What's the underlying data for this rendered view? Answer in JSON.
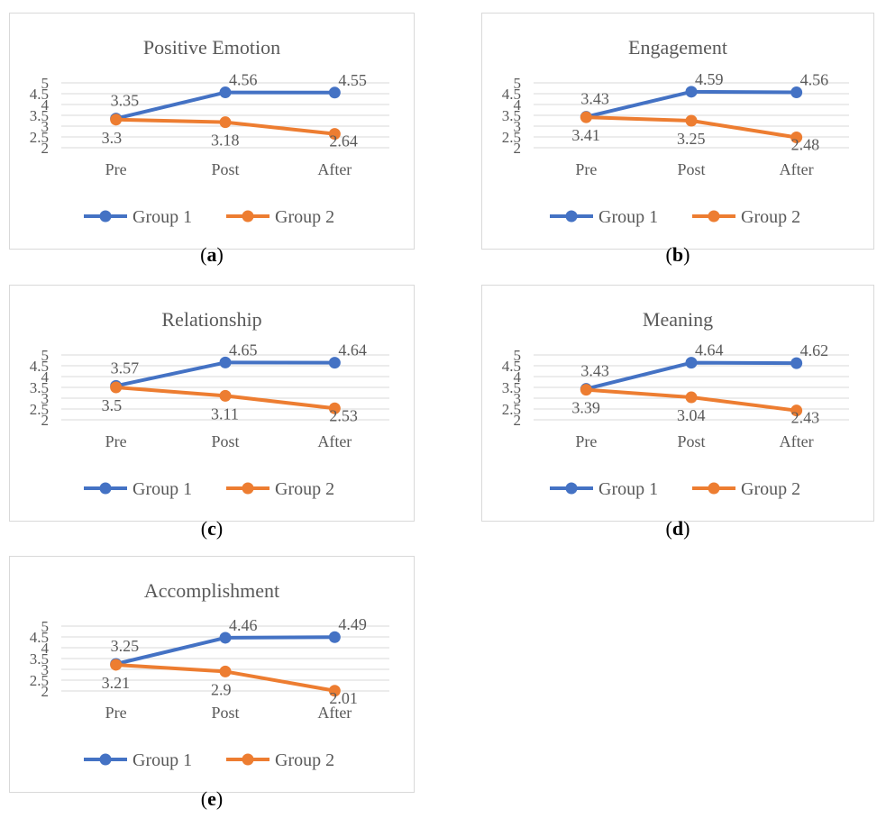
{
  "colors": {
    "group1": "#4472C4",
    "group2": "#ED7D31",
    "grid": "#d9d9d9",
    "text": "#595959"
  },
  "chart_data": [
    {
      "type": "line",
      "title": "Positive Emotion",
      "caption": "a",
      "categories": [
        "Pre",
        "Post",
        "After"
      ],
      "y_ticks": [
        "2",
        "2.5",
        "3",
        "3.5",
        "4",
        "4.5",
        "5"
      ],
      "ylim": [
        2,
        5
      ],
      "grid": true,
      "legend": "bottom",
      "series": [
        {
          "name": "Group 1",
          "values": [
            3.35,
            4.56,
            4.55
          ],
          "labels": [
            "3.35",
            "4.56",
            "4.55"
          ]
        },
        {
          "name": "Group 2",
          "values": [
            3.3,
            3.18,
            2.64
          ],
          "labels": [
            "3.3",
            "3.18",
            "2.64"
          ]
        }
      ]
    },
    {
      "type": "line",
      "title": "Engagement",
      "caption": "b",
      "categories": [
        "Pre",
        "Post",
        "After"
      ],
      "y_ticks": [
        "2",
        "2.5",
        "3",
        "3.5",
        "4",
        "4.5",
        "5"
      ],
      "ylim": [
        2,
        5
      ],
      "grid": true,
      "legend": "bottom",
      "series": [
        {
          "name": "Group 1",
          "values": [
            3.43,
            4.59,
            4.56
          ],
          "labels": [
            "3.43",
            "4.59",
            "4.56"
          ]
        },
        {
          "name": "Group 2",
          "values": [
            3.41,
            3.25,
            2.48
          ],
          "labels": [
            "3.41",
            "3.25",
            "2.48"
          ]
        }
      ]
    },
    {
      "type": "line",
      "title": "Relationship",
      "caption": "c",
      "categories": [
        "Pre",
        "Post",
        "After"
      ],
      "y_ticks": [
        "2",
        "2.5",
        "3",
        "3.5",
        "4",
        "4.5",
        "5"
      ],
      "ylim": [
        2,
        5
      ],
      "grid": true,
      "legend": "bottom",
      "series": [
        {
          "name": "Group 1",
          "values": [
            3.57,
            4.65,
            4.64
          ],
          "labels": [
            "3.57",
            "4.65",
            "4.64"
          ]
        },
        {
          "name": "Group 2",
          "values": [
            3.5,
            3.11,
            2.53
          ],
          "labels": [
            "3.5",
            "3.11",
            "2.53"
          ]
        }
      ]
    },
    {
      "type": "line",
      "title": "Meaning",
      "caption": "d",
      "categories": [
        "Pre",
        "Post",
        "After"
      ],
      "y_ticks": [
        "2",
        "2.5",
        "3",
        "3.5",
        "4",
        "4.5",
        "5"
      ],
      "ylim": [
        2,
        5
      ],
      "grid": true,
      "legend": "bottom",
      "series": [
        {
          "name": "Group 1",
          "values": [
            3.43,
            4.64,
            4.62
          ],
          "labels": [
            "3.43",
            "4.64",
            "4.62"
          ]
        },
        {
          "name": "Group 2",
          "values": [
            3.39,
            3.04,
            2.43
          ],
          "labels": [
            "3.39",
            "3.04",
            "2.43"
          ]
        }
      ]
    },
    {
      "type": "line",
      "title": "Accomplishment",
      "caption": "e",
      "categories": [
        "Pre",
        "Post",
        "After"
      ],
      "y_ticks": [
        "2",
        "2.5",
        "3",
        "3.5",
        "4",
        "4.5",
        "5"
      ],
      "ylim": [
        2,
        5
      ],
      "grid": true,
      "legend": "bottom",
      "series": [
        {
          "name": "Group 1",
          "values": [
            3.25,
            4.46,
            4.49
          ],
          "labels": [
            "3.25",
            "4.46",
            "4.49"
          ]
        },
        {
          "name": "Group 2",
          "values": [
            3.21,
            2.9,
            2.01
          ],
          "labels": [
            "3.21",
            "2.9",
            "2.01"
          ]
        }
      ]
    }
  ]
}
